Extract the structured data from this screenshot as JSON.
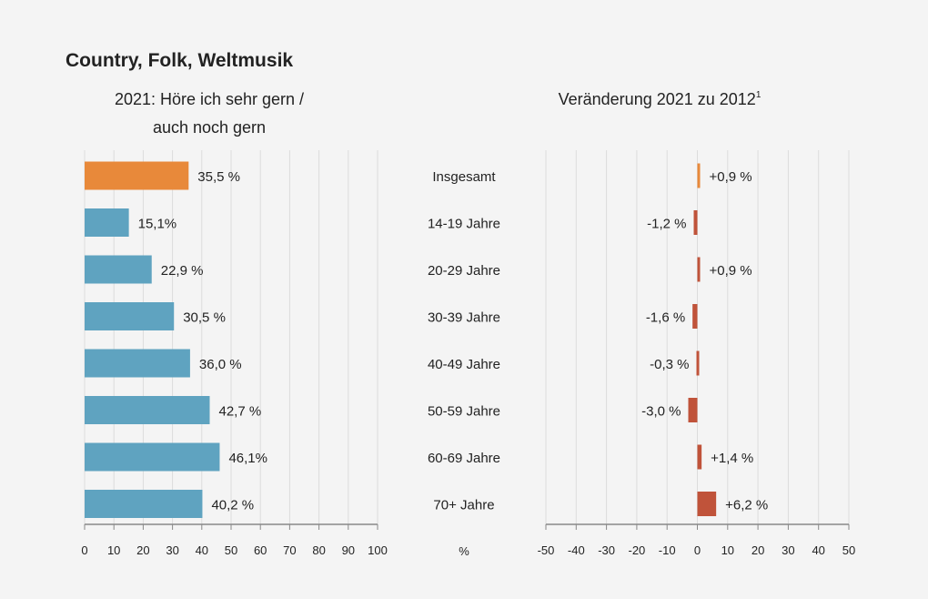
{
  "colors": {
    "background": "#f4f4f4",
    "highlight": "#e8893a",
    "bar": "#5fa3c0",
    "change": "#c0533a",
    "grid": "#dcdcdc",
    "axis": "#888888"
  },
  "chart_data": [
    {
      "type": "bar",
      "orientation": "horizontal",
      "title": "Country, Folk, Weltmusik",
      "subtitle_lines": [
        "2021: Höre ich sehr gern /",
        "auch noch gern"
      ],
      "categories": [
        "Insgesamt",
        "14-19 Jahre",
        "20-29 Jahre",
        "30-39 Jahre",
        "40-49 Jahre",
        "50-59 Jahre",
        "60-69 Jahre",
        "70+ Jahre"
      ],
      "values": [
        35.5,
        15.1,
        22.9,
        30.5,
        36.0,
        42.7,
        46.1,
        40.2
      ],
      "data_labels": [
        "35,5 %",
        "15,1%",
        "22,9 %",
        "30,5 %",
        "36,0 %",
        "42,7 %",
        "46,1%",
        "40,2 %"
      ],
      "xlim": [
        0,
        100
      ],
      "xticks": [
        "0",
        "10",
        "20",
        "30",
        "40",
        "50",
        "60",
        "70",
        "80",
        "90",
        "100"
      ],
      "xlabel": "%",
      "grid": true
    },
    {
      "type": "bar",
      "orientation": "horizontal",
      "subtitle": "Veränderung 2021 zu 2012",
      "subtitle_footnote": "1",
      "categories": [
        "Insgesamt",
        "14-19 Jahre",
        "20-29 Jahre",
        "30-39 Jahre",
        "40-49 Jahre",
        "50-59 Jahre",
        "60-69 Jahre",
        "70+ Jahre"
      ],
      "values": [
        0.9,
        -1.2,
        0.9,
        -1.6,
        -0.3,
        -3.0,
        1.4,
        6.2
      ],
      "data_labels": [
        "+0,9 %",
        "-1,2 %",
        "+0,9 %",
        "-1,6 %",
        "-0,3 %",
        "-3,0 %",
        "+1,4 %",
        "+6,2 %"
      ],
      "xlim": [
        -50,
        50
      ],
      "xticks": [
        "-50",
        "-40",
        "-30",
        "-20",
        "-10",
        "0",
        "10",
        "20",
        "30",
        "40",
        "50"
      ],
      "grid": true
    }
  ]
}
